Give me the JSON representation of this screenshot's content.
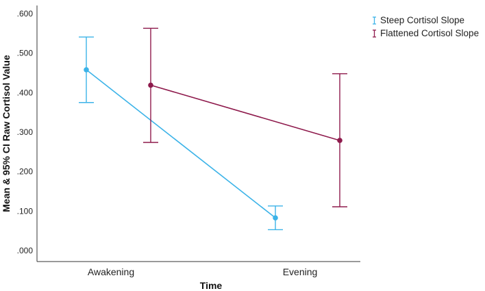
{
  "chart_data": {
    "type": "line",
    "title": "",
    "xlabel": "Time",
    "ylabel": "Mean & 95% CI Raw Cortisol Value",
    "categories": [
      "Awakening",
      "Evening"
    ],
    "ylim": [
      0,
      0.6
    ],
    "yticks": [
      ".000",
      ".100",
      ".200",
      ".300",
      ".400",
      ".500",
      ".600"
    ],
    "grid": false,
    "legend_position": "top-right",
    "error_bars": "95% CI",
    "series": [
      {
        "name": "Steep Cortisol Slope",
        "color": "#3bb3e8",
        "values": [
          0.458,
          0.083
        ],
        "ci_lower": [
          0.375,
          0.053
        ],
        "ci_upper": [
          0.541,
          0.113
        ]
      },
      {
        "name": "Flattened Cortisol Slope",
        "color": "#8e1a4c",
        "values": [
          0.419,
          0.279
        ],
        "ci_lower": [
          0.274,
          0.111
        ],
        "ci_upper": [
          0.563,
          0.448
        ]
      }
    ]
  }
}
